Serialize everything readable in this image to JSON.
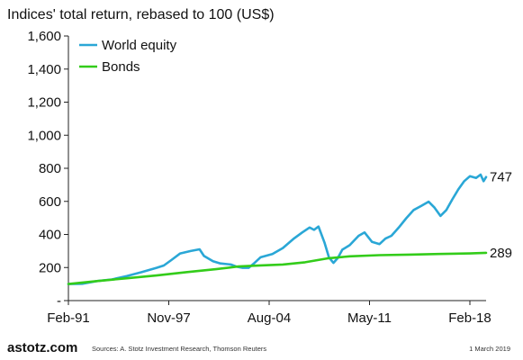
{
  "chart_data": {
    "type": "line",
    "title": "Indices' total return, rebased to 100 (US$)",
    "xlabel": "",
    "ylabel": "",
    "ylim": [
      0,
      1600
    ],
    "yticks": [
      0,
      200,
      400,
      600,
      800,
      1000,
      1200,
      1400,
      1600
    ],
    "ytick_labels": [
      "-",
      "200",
      "400",
      "600",
      "800",
      "1,000",
      "1,200",
      "1,400",
      "1,600"
    ],
    "xlim": [
      1991.08,
      2019.17
    ],
    "xticks": [
      1991.08,
      1997.83,
      2004.58,
      2011.33,
      2018.08
    ],
    "xtick_labels": [
      "Feb-91",
      "Nov-97",
      "Aug-04",
      "May-11",
      "Feb-18"
    ],
    "grid": false,
    "legend": "top-left",
    "series": [
      {
        "name": "World equity",
        "color": "#2aa7d6",
        "end_label": "747",
        "x": [
          1991.08,
          1992.0,
          1993.0,
          1994.0,
          1995.0,
          1996.0,
          1997.0,
          1997.5,
          1998.0,
          1998.6,
          1999.3,
          1999.9,
          2000.2,
          2000.8,
          2001.3,
          2002.0,
          2002.4,
          2002.8,
          2003.2,
          2003.6,
          2004.0,
          2004.8,
          2005.5,
          2006.2,
          2006.8,
          2007.3,
          2007.6,
          2007.9,
          2008.3,
          2008.6,
          2008.9,
          2009.2,
          2009.5,
          2010.0,
          2010.6,
          2011.0,
          2011.5,
          2012.0,
          2012.4,
          2012.8,
          2013.3,
          2013.8,
          2014.3,
          2014.8,
          2015.3,
          2015.7,
          2016.1,
          2016.5,
          2016.9,
          2017.3,
          2017.7,
          2018.08,
          2018.5,
          2018.8,
          2019.0,
          2019.17
        ],
        "values": [
          100,
          102,
          118,
          128,
          148,
          172,
          198,
          212,
          245,
          285,
          300,
          310,
          270,
          238,
          225,
          218,
          205,
          198,
          198,
          228,
          262,
          282,
          318,
          372,
          412,
          442,
          428,
          448,
          352,
          262,
          228,
          258,
          308,
          335,
          392,
          412,
          355,
          342,
          375,
          392,
          442,
          498,
          548,
          572,
          598,
          562,
          512,
          548,
          612,
          672,
          722,
          752,
          742,
          762,
          722,
          747
        ]
      },
      {
        "name": "Bonds",
        "color": "#33cc1a",
        "end_label": "289",
        "x": [
          1991.08,
          1993.0,
          1995.0,
          1997.0,
          1999.0,
          2001.0,
          2002.5,
          2004.0,
          2005.5,
          2007.0,
          2008.5,
          2010.0,
          2012.0,
          2014.0,
          2016.0,
          2018.08,
          2019.17
        ],
        "values": [
          100,
          118,
          135,
          152,
          172,
          190,
          206,
          213,
          218,
          232,
          255,
          268,
          275,
          278,
          282,
          285,
          289
        ]
      }
    ]
  },
  "footer": {
    "brand": "astotz.com",
    "source": "Sources: A. Stotz Investment Research, Thomson Reuters",
    "date": "1 March 2019"
  }
}
